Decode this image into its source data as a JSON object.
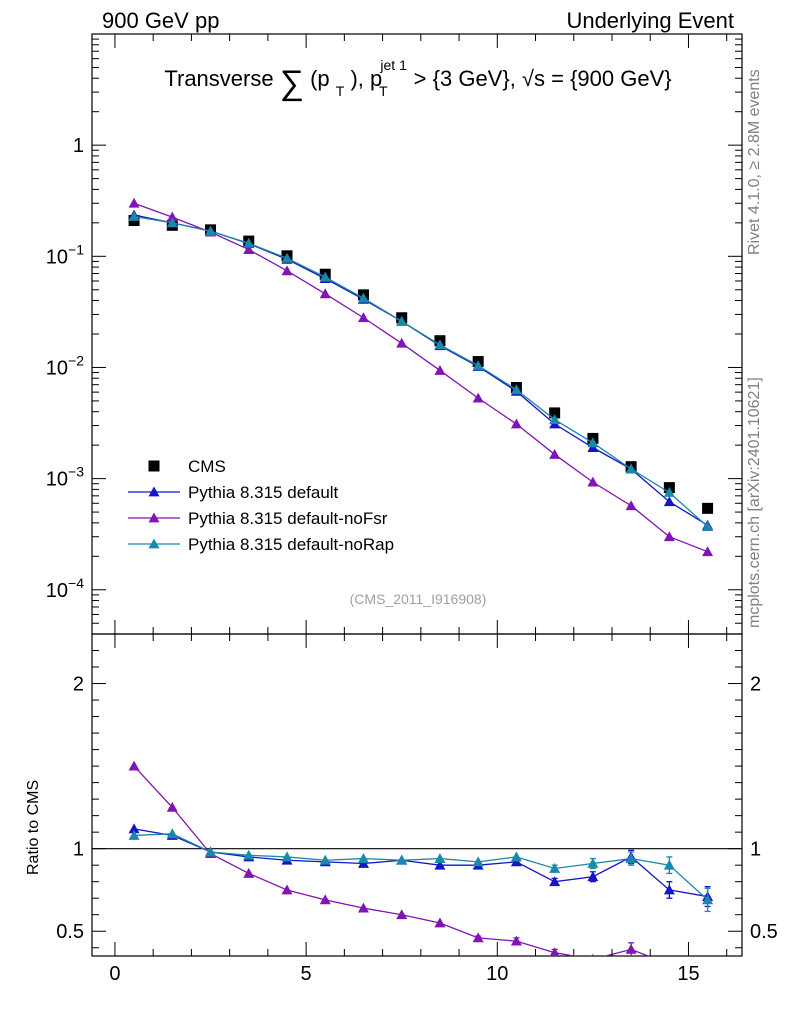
{
  "header": {
    "left": "900 GeV pp",
    "right": "Underlying Event"
  },
  "side_notes": {
    "top": "Rivet 4.1.0, ≥ 2.8M events",
    "bottom": "mcplots.cern.ch [arXiv:2401.10621]"
  },
  "chart_data": {
    "type": "line",
    "title": {
      "prefix": "Transverse",
      "sum_symbol": "∑",
      "quantity": "(p",
      "quantity_sub": "T",
      "quantity_close": "), p",
      "cut_sup": "jet 1",
      "cut_sub": "T",
      "cut_text": " > {3 GeV}, √s = {900 GeV}"
    },
    "watermark": "(CMS_2011_I916908)",
    "x": [
      0.5,
      1.5,
      2.5,
      3.5,
      4.5,
      5.5,
      6.5,
      7.5,
      8.5,
      9.5,
      10.5,
      11.5,
      12.5,
      13.5,
      14.5,
      15.5
    ],
    "xlim": [
      -0.6,
      16.4
    ],
    "xticks": [
      "0",
      "5",
      "10",
      "15"
    ],
    "main_panel": {
      "yscale": "log",
      "ylim": [
        4e-05,
        10
      ],
      "yticks": [
        {
          "base": "1",
          "exp": ""
        },
        {
          "base": "10",
          "exp": "−1"
        },
        {
          "base": "10",
          "exp": "−2"
        },
        {
          "base": "10",
          "exp": "−3"
        },
        {
          "base": "10",
          "exp": "−4"
        }
      ],
      "ylabel": ""
    },
    "ratio_panel": {
      "ylabel": "Ratio to CMS",
      "ylim": [
        0.35,
        2.3
      ],
      "yticks": [
        "2",
        "1",
        "0.5"
      ],
      "reference_line": 1
    },
    "legend": {
      "position": "bottom-left",
      "entries": [
        "CMS",
        "Pythia 8.315 default",
        "Pythia 8.315 default-noFsr",
        "Pythia 8.315 default-noRap"
      ]
    },
    "series": [
      {
        "name": "CMS",
        "marker": "square",
        "color": "#000000",
        "values": [
          0.21,
          0.19,
          0.173,
          0.137,
          0.101,
          0.069,
          0.045,
          0.028,
          0.0174,
          0.0113,
          0.0066,
          0.0039,
          0.0023,
          0.00128,
          0.00083,
          0.00054
        ]
      },
      {
        "name": "Pythia 8.315 default",
        "marker": "triangle",
        "color": "#1515c8",
        "values": [
          0.235,
          0.2,
          0.169,
          0.13,
          0.094,
          0.063,
          0.041,
          0.026,
          0.0157,
          0.0102,
          0.0061,
          0.0031,
          0.0019,
          0.00122,
          0.00062,
          0.00038
        ],
        "ratio": [
          1.12,
          1.08,
          0.98,
          0.95,
          0.93,
          0.92,
          0.91,
          0.93,
          0.9,
          0.9,
          0.92,
          0.8,
          0.83,
          0.95,
          0.75,
          0.71
        ],
        "ratio_err": [
          0,
          0,
          0,
          0,
          0,
          0,
          0,
          0,
          0,
          0,
          0,
          0.02,
          0.03,
          0.04,
          0.05,
          0.06
        ]
      },
      {
        "name": "Pythia 8.315 default-noFsr",
        "marker": "triangle",
        "color": "#8014b4",
        "values": [
          0.3,
          0.225,
          0.165,
          0.115,
          0.074,
          0.046,
          0.028,
          0.0165,
          0.0094,
          0.0053,
          0.0031,
          0.00165,
          0.00093,
          0.00057,
          0.0003,
          0.00022
        ],
        "ratio": [
          1.5,
          1.25,
          0.97,
          0.85,
          0.75,
          0.69,
          0.64,
          0.6,
          0.55,
          0.46,
          0.44,
          0.37,
          0.33,
          0.39,
          0.3,
          0.3
        ],
        "ratio_err": [
          0,
          0,
          0,
          0,
          0,
          0,
          0,
          0,
          0,
          0.01,
          0.02,
          0.02,
          0.02,
          0.04,
          0.03,
          0.03
        ]
      },
      {
        "name": "Pythia 8.315 default-noRap",
        "marker": "triangle",
        "color": "#1a88a8",
        "values": [
          0.228,
          0.2,
          0.168,
          0.131,
          0.096,
          0.065,
          0.042,
          0.026,
          0.016,
          0.0104,
          0.0063,
          0.0034,
          0.0021,
          0.00122,
          0.00075,
          0.00037
        ],
        "ratio": [
          1.08,
          1.09,
          0.98,
          0.96,
          0.95,
          0.93,
          0.94,
          0.93,
          0.94,
          0.92,
          0.95,
          0.88,
          0.91,
          0.94,
          0.9,
          0.69
        ],
        "ratio_err": [
          0,
          0,
          0,
          0,
          0,
          0,
          0,
          0,
          0,
          0,
          0,
          0.02,
          0.03,
          0.04,
          0.05,
          0.07
        ]
      }
    ]
  }
}
